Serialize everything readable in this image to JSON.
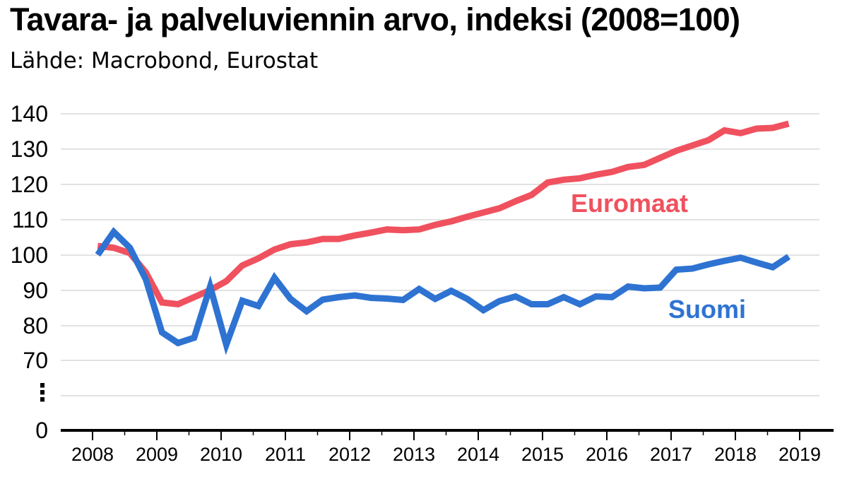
{
  "title": "Tavara- ja palveluviennin arvo, indeksi (2008=100)",
  "subtitle": "Lähde: Macrobond, Eurostat",
  "colors": {
    "euromaat": "#f0515e",
    "suomi": "#2e73d2",
    "grid": "#d9d9d9",
    "axis": "#000000"
  },
  "chart_data": {
    "type": "line",
    "ylim": [
      65,
      140
    ],
    "y_axis_break": true,
    "y_ticks": [
      "140",
      "130",
      "120",
      "110",
      "100",
      "90",
      "80",
      "70",
      "⋮",
      "0"
    ],
    "x_ticks": [
      "2008",
      "2009",
      "2010",
      "2011",
      "2012",
      "2013",
      "2014",
      "2015",
      "2016",
      "2017",
      "2018",
      "2019"
    ],
    "grid": true,
    "series": [
      {
        "name": "Euromaat",
        "values": [
          [
            2008.08,
            102.5
          ],
          [
            2008.33,
            102
          ],
          [
            2008.58,
            100.5
          ],
          [
            2008.83,
            95
          ],
          [
            2009.08,
            86.5
          ],
          [
            2009.33,
            86
          ],
          [
            2009.58,
            88
          ],
          [
            2009.83,
            90
          ],
          [
            2010.08,
            92.5
          ],
          [
            2010.33,
            97
          ],
          [
            2010.58,
            99
          ],
          [
            2010.83,
            101.5
          ],
          [
            2011.08,
            103
          ],
          [
            2011.33,
            103.5
          ],
          [
            2011.58,
            104.5
          ],
          [
            2011.83,
            104.5
          ],
          [
            2012.08,
            105.5
          ],
          [
            2012.33,
            106.3
          ],
          [
            2012.58,
            107.2
          ],
          [
            2012.83,
            107
          ],
          [
            2013.08,
            107.2
          ],
          [
            2013.33,
            108.5
          ],
          [
            2013.58,
            109.5
          ],
          [
            2013.83,
            110.8
          ],
          [
            2014.08,
            112
          ],
          [
            2014.33,
            113.2
          ],
          [
            2014.58,
            115.2
          ],
          [
            2014.83,
            117
          ],
          [
            2015.08,
            120.5
          ],
          [
            2015.33,
            121.3
          ],
          [
            2015.58,
            121.7
          ],
          [
            2015.83,
            122.7
          ],
          [
            2016.08,
            123.5
          ],
          [
            2016.33,
            124.9
          ],
          [
            2016.58,
            125.5
          ],
          [
            2016.83,
            127.5
          ],
          [
            2017.08,
            129.5
          ],
          [
            2017.33,
            131
          ],
          [
            2017.58,
            132.5
          ],
          [
            2017.83,
            135.3
          ],
          [
            2018.08,
            134.5
          ],
          [
            2018.33,
            135.8
          ],
          [
            2018.58,
            136
          ],
          [
            2018.83,
            137.2
          ]
        ]
      },
      {
        "name": "Suomi",
        "values": [
          [
            2008.08,
            100
          ],
          [
            2008.33,
            106.5
          ],
          [
            2008.58,
            102
          ],
          [
            2008.83,
            93
          ],
          [
            2009.08,
            78
          ],
          [
            2009.33,
            75
          ],
          [
            2009.58,
            76.5
          ],
          [
            2009.83,
            91
          ],
          [
            2010.08,
            74.5
          ],
          [
            2010.33,
            87
          ],
          [
            2010.58,
            85.5
          ],
          [
            2010.83,
            93.5
          ],
          [
            2011.08,
            87.5
          ],
          [
            2011.33,
            84
          ],
          [
            2011.58,
            87.3
          ],
          [
            2011.83,
            88
          ],
          [
            2012.08,
            88.5
          ],
          [
            2012.33,
            87.8
          ],
          [
            2012.58,
            87.6
          ],
          [
            2012.83,
            87.2
          ],
          [
            2013.08,
            90.3
          ],
          [
            2013.33,
            87.5
          ],
          [
            2013.58,
            89.8
          ],
          [
            2013.83,
            87.5
          ],
          [
            2014.08,
            84.3
          ],
          [
            2014.33,
            86.9
          ],
          [
            2014.58,
            88.2
          ],
          [
            2014.83,
            86
          ],
          [
            2015.08,
            86
          ],
          [
            2015.33,
            88
          ],
          [
            2015.58,
            86
          ],
          [
            2015.83,
            88.2
          ],
          [
            2016.08,
            88
          ],
          [
            2016.33,
            91
          ],
          [
            2016.58,
            90.5
          ],
          [
            2016.83,
            90.7
          ],
          [
            2017.08,
            95.8
          ],
          [
            2017.33,
            96.1
          ],
          [
            2017.58,
            97.3
          ],
          [
            2017.83,
            98.3
          ],
          [
            2018.08,
            99.2
          ],
          [
            2018.33,
            97.8
          ],
          [
            2018.58,
            96.5
          ],
          [
            2018.83,
            99.5
          ]
        ]
      }
    ]
  }
}
